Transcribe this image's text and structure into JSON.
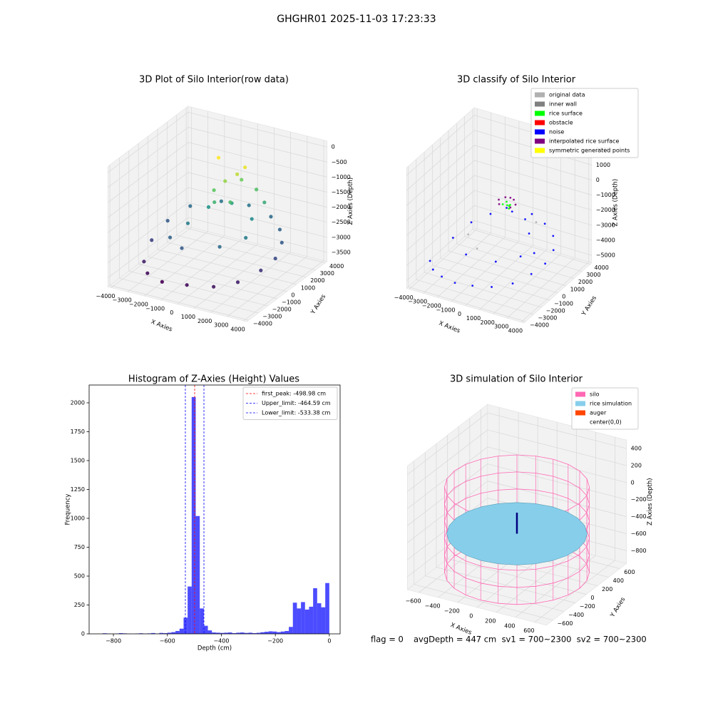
{
  "title": "GHGHR01 2025-11-03 17:23:33",
  "footer": [
    "flag = 0",
    "avgDepth = 447 cm  sv1 = 700~2300  sv2 = 700~2300"
  ],
  "chart_data": [
    {
      "type": "scatter3d",
      "title": "3D Plot of Silo Interior(row data)",
      "colormap": "viridis",
      "xlabel": "X Axies",
      "ylabel": "Y Axies",
      "zlabel": "Z Axies (Depth)",
      "xlim": [
        -4200,
        4200
      ],
      "ylim": [
        -4200,
        4200
      ],
      "zlim": [
        -3800,
        200
      ],
      "xticks": [
        {
          "value": -4000,
          "label": "−4000"
        },
        {
          "value": -3000,
          "label": "−3000"
        },
        {
          "value": -2000,
          "label": "−2000"
        },
        {
          "value": -1000,
          "label": "−1000"
        },
        0,
        1000,
        2000,
        3000,
        4000
      ],
      "yticks": [
        {
          "value": -4000,
          "label": "−4000"
        },
        {
          "value": -3000,
          "label": "−3000"
        },
        {
          "value": -2000,
          "label": "−2000"
        },
        {
          "value": -1000,
          "label": "−1000"
        },
        0,
        1000,
        2000,
        3000,
        4000
      ],
      "zticks": [
        0,
        {
          "value": -500,
          "label": "−500"
        },
        {
          "value": -1000,
          "label": "−1000"
        },
        {
          "value": -1500,
          "label": "−1500"
        },
        {
          "value": -2000,
          "label": "−2000"
        },
        {
          "value": -2500,
          "label": "−2500"
        },
        {
          "value": -3000,
          "label": "−3000"
        },
        {
          "value": -3500,
          "label": "−3500"
        }
      ],
      "series": [
        {
          "x": [
            -3000,
            -2500,
            -1500,
            0,
            1500,
            2500,
            3200,
            3500,
            3200,
            2500,
            1500,
            0,
            -1500,
            -2800,
            -3300,
            -3400,
            -2000,
            -1000,
            1000,
            2000,
            1500,
            0,
            -1000,
            -1500,
            -500,
            0,
            500,
            800,
            -800,
            300,
            1200,
            1800,
            -300,
            600
          ],
          "y": [
            -2500,
            -3000,
            -3200,
            -3200,
            -3000,
            -2200,
            -1000,
            0,
            1200,
            2200,
            3000,
            3300,
            3000,
            2000,
            500,
            -1000,
            -1500,
            -2000,
            -1500,
            -500,
            1000,
            1500,
            800,
            -500,
            500,
            800,
            1200,
            1500,
            1500,
            2000,
            2000,
            1800,
            200,
            300
          ],
          "z": [
            -3200,
            -3400,
            -3500,
            -3400,
            -3300,
            -3200,
            -3000,
            -2800,
            -2600,
            -2500,
            -2400,
            -2300,
            -2300,
            -2400,
            -2600,
            -2900,
            -2500,
            -2600,
            -2400,
            -2200,
            -2000,
            -1800,
            -1900,
            -2200,
            -1200,
            -900,
            -700,
            -500,
            -400,
            -1100,
            -1300,
            -1600,
            -1500,
            -1400
          ]
        }
      ]
    },
    {
      "type": "scatter3d",
      "title": "3D classify of Silo Interior",
      "xlabel": "X Axies",
      "ylabel": "Y Axies",
      "zlabel": "Z Axies (Depth)",
      "xlim": [
        -4200,
        4200
      ],
      "ylim": [
        -4200,
        4200
      ],
      "zlim": [
        -5500,
        2500
      ],
      "xticks": [
        {
          "value": -4000,
          "label": "−4000"
        },
        {
          "value": -3000,
          "label": "−3000"
        },
        {
          "value": -2000,
          "label": "−2000"
        },
        {
          "value": -1000,
          "label": "−1000"
        },
        0,
        1000,
        2000,
        3000,
        4000
      ],
      "yticks": [
        {
          "value": -4000,
          "label": "−4000"
        },
        {
          "value": -3000,
          "label": "−3000"
        },
        {
          "value": -2000,
          "label": "−2000"
        },
        {
          "value": -1000,
          "label": "−1000"
        },
        0,
        1000,
        2000,
        3000,
        4000
      ],
      "zticks": [
        2000,
        1000,
        0,
        {
          "value": -1000,
          "label": "−1000"
        },
        {
          "value": -2000,
          "label": "−2000"
        },
        {
          "value": -3000,
          "label": "−3000"
        },
        {
          "value": -4000,
          "label": "−4000"
        },
        {
          "value": -5000,
          "label": "−5000"
        }
      ],
      "series": [
        {
          "name": "original data",
          "color": "#b0b0b0",
          "x": [
            -1000,
            1500,
            -2500
          ],
          "y": [
            -1000,
            2000,
            500
          ],
          "z": [
            -3500,
            -2500,
            -3700
          ]
        },
        {
          "name": "inner wall",
          "color": "#808080",
          "x": [],
          "y": [],
          "z": []
        },
        {
          "name": "rice surface",
          "color": "#00ff00",
          "x": [
            -200,
            0,
            200,
            100,
            -100,
            300
          ],
          "y": [
            800,
            1000,
            900,
            1200,
            1100,
            700
          ],
          "z": [
            -1200,
            -1300,
            -1250,
            -1350,
            -1150,
            -1300
          ]
        },
        {
          "name": "obstacle",
          "color": "#ff0000",
          "x": [],
          "y": [],
          "z": []
        },
        {
          "name": "noise",
          "color": "#0000ff",
          "x": [
            -3500,
            -3000,
            -2200,
            -1200,
            0,
            1200,
            2300,
            3000,
            3300,
            3200,
            2600,
            1600,
            500,
            -800,
            -2000,
            -2800,
            -3300,
            -1500,
            800,
            2000,
            1000,
            -500,
            1800,
            2800
          ],
          "y": [
            -2500,
            -3000,
            -3300,
            -3400,
            -3300,
            -3000,
            -2300,
            -1200,
            0,
            1200,
            2200,
            2900,
            3200,
            3000,
            2400,
            1400,
            0,
            -1500,
            -1800,
            -800,
            1500,
            1800,
            600,
            -500
          ],
          "z": [
            -4300,
            -4500,
            -4600,
            -4700,
            -4600,
            -4500,
            -4300,
            -4000,
            -3800,
            -3500,
            -3200,
            -3000,
            -2800,
            -2900,
            -3100,
            -3400,
            -3900,
            -3800,
            -3500,
            -3300,
            -2200,
            -2000,
            -2500,
            -3000
          ]
        },
        {
          "name": "interpolated rice surface",
          "color": "#800080",
          "x": [
            -600,
            -300,
            0,
            300,
            600,
            -400,
            400
          ],
          "y": [
            1000,
            1300,
            1400,
            1300,
            1000,
            700,
            700
          ],
          "z": [
            -1100,
            -1000,
            -1000,
            -1000,
            -1100,
            -1200,
            -1200
          ]
        },
        {
          "name": "symmetric generated points",
          "color": "#ffff00",
          "x": [],
          "y": [],
          "z": []
        }
      ]
    },
    {
      "type": "histogram",
      "title": "Histogram of Z-Axies (Height) Values",
      "xlabel": "Depth (cm)",
      "ylabel": "Frequency",
      "color": "#0000ff",
      "xlim": [
        -890,
        40
      ],
      "ylim": [
        0,
        2154
      ],
      "xticks": [
        {
          "value": -800,
          "label": "−800"
        },
        {
          "value": -600,
          "label": "−600"
        },
        {
          "value": -400,
          "label": "−400"
        },
        {
          "value": -200,
          "label": "−200"
        },
        0
      ],
      "yticks": [
        0,
        250,
        500,
        750,
        1000,
        1250,
        1500,
        1750,
        2000
      ],
      "bins": [
        -840,
        -825,
        -810,
        -795,
        -780,
        -765,
        -750,
        -735,
        -720,
        -705,
        -690,
        -675,
        -660,
        -645,
        -630,
        -615,
        -600,
        -585,
        -570,
        -555,
        -540,
        -525,
        -510,
        -495,
        -480,
        -465,
        -450,
        -435,
        -420,
        -405,
        -390,
        -375,
        -360,
        -345,
        -330,
        -315,
        -300,
        -285,
        -270,
        -255,
        -240,
        -225,
        -210,
        -195,
        -180,
        -165,
        -150,
        -135,
        -120,
        -105,
        -90,
        -75,
        -60,
        -45,
        -30,
        -15,
        0
      ],
      "values": [
        5,
        3,
        0,
        2,
        6,
        4,
        1,
        0,
        3,
        5,
        2,
        4,
        7,
        3,
        8,
        6,
        10,
        15,
        25,
        45,
        140,
        410,
        2050,
        1020,
        220,
        70,
        30,
        12,
        10,
        8,
        10,
        12,
        6,
        10,
        12,
        8,
        10,
        6,
        9,
        14,
        18,
        22,
        20,
        15,
        20,
        25,
        60,
        270,
        220,
        275,
        210,
        235,
        395,
        265,
        230,
        440
      ],
      "lines": [
        {
          "name": "first_peak: -498.98 cm",
          "value": -498.98,
          "color": "#ff0000"
        },
        {
          "name": "Upper_limit: -464.59 cm",
          "value": -464.59,
          "color": "#0000ff"
        },
        {
          "name": "Lower_limit: -533.38 cm",
          "value": -533.38,
          "color": "#0000ff"
        }
      ]
    },
    {
      "type": "silo3d",
      "title": "3D simulation of Silo Interior",
      "xlabel": "X Axies",
      "ylabel": "Y Axies",
      "zlabel": "Z Axies (Depth)",
      "xlim": [
        -720,
        720
      ],
      "ylim": [
        -720,
        720
      ],
      "zlim": [
        -950,
        500
      ],
      "xticks": [
        {
          "value": -600,
          "label": "−600"
        },
        {
          "value": -400,
          "label": "−400"
        },
        {
          "value": -200,
          "label": "−200"
        },
        0,
        200,
        400,
        600
      ],
      "yticks": [
        {
          "value": -600,
          "label": "−600"
        },
        {
          "value": -400,
          "label": "−400"
        },
        {
          "value": -200,
          "label": "−200"
        },
        0,
        200,
        400,
        600
      ],
      "zticks": [
        400,
        200,
        0,
        {
          "value": -200,
          "label": "−200"
        },
        {
          "value": -400,
          "label": "−400"
        },
        {
          "value": -600,
          "label": "−600"
        },
        {
          "value": -800,
          "label": "−800"
        }
      ],
      "legend": [
        {
          "name": "silo",
          "color": "#ff69b4"
        },
        {
          "name": "rice simulation",
          "color": "#87ceeb"
        },
        {
          "name": "auger",
          "color": "#ff4500"
        },
        {
          "name": "center(0,0)",
          "color": "#ffffff"
        }
      ],
      "silo": {
        "radius": 650,
        "zlim": [
          -900,
          100
        ]
      },
      "rice": {
        "radius": 630,
        "z": -447
      },
      "auger": {
        "z": [
          -447,
          -200
        ]
      }
    }
  ]
}
